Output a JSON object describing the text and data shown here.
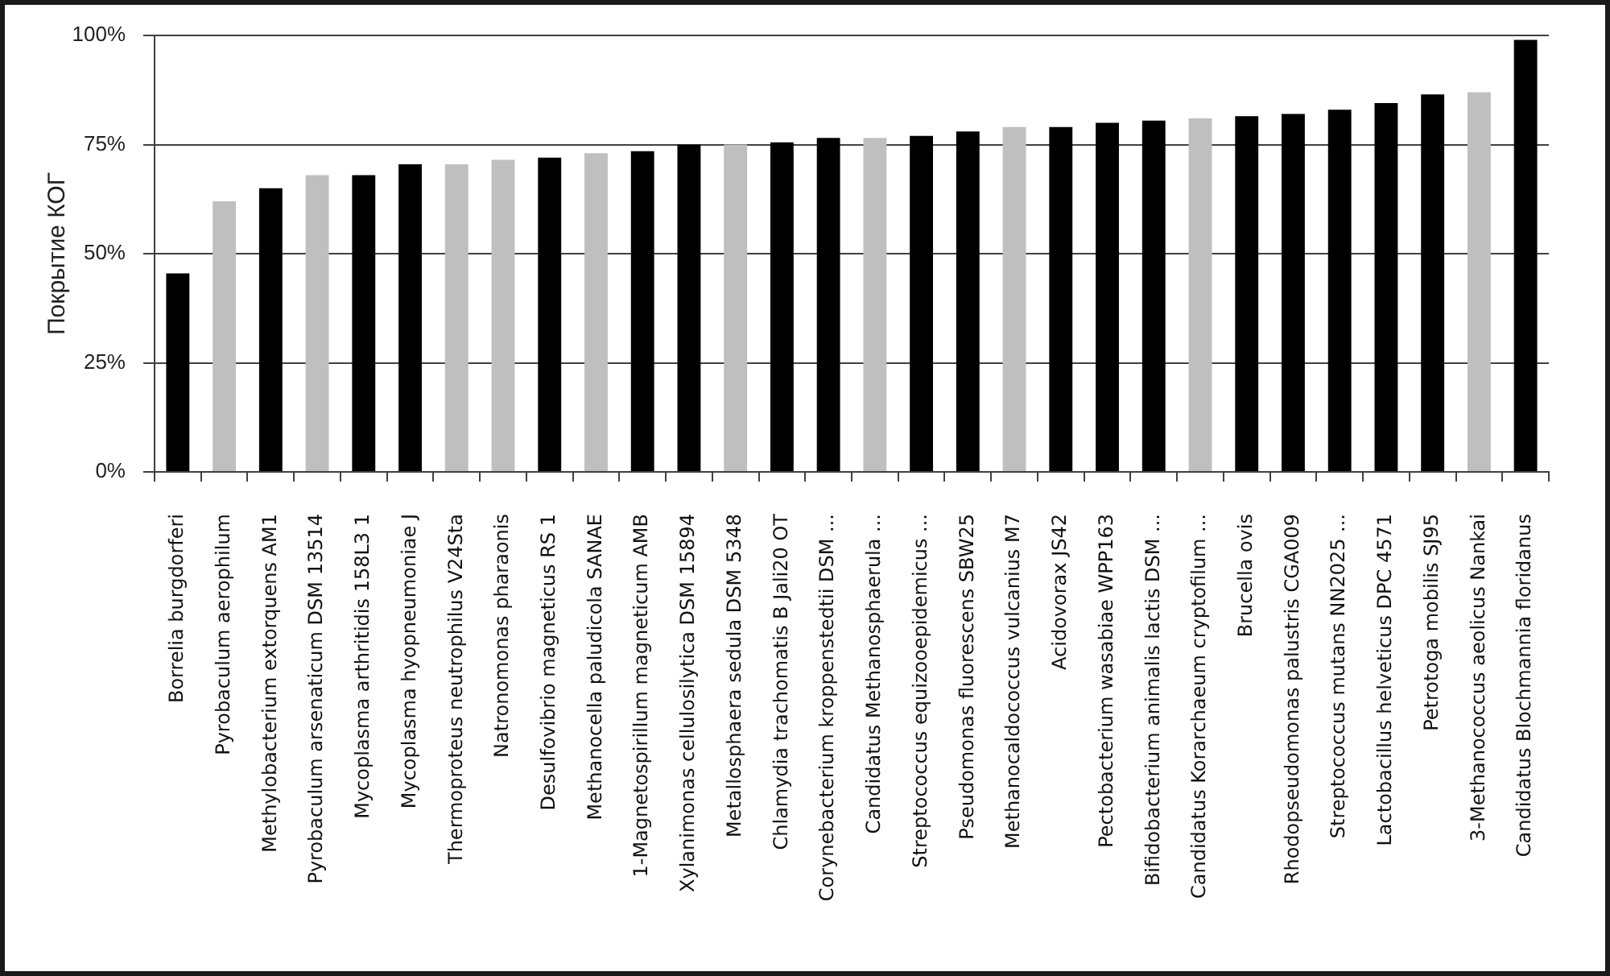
{
  "chart_data": {
    "type": "bar",
    "ylabel": "Покрытие КОГ",
    "categories": [
      "Borrelia burgdorferi",
      "Pyrobaculum aerophilum",
      "Methylobacterium extorquens AM1",
      "Pyrobaculum arsenaticum DSM 13514",
      "Mycoplasma arthritidis 158L3 1",
      "Mycoplasma hyopneumoniae J",
      "Thermoproteus neutrophilus V24Sta",
      "Natronomonas pharaonis",
      "Desulfovibrio magneticus RS 1",
      "Methanocella paludicola SANAE",
      "1-Magnetospirillum magneticum AMB",
      "Xylanimonas cellulosilytica DSM 15894",
      "Metallosphaera sedula DSM 5348",
      "Chlamydia trachomatis B Jali20 OT",
      "Corynebacterium kroppenstedtii DSM ...",
      "Candidatus Methanosphaerula ...",
      "Streptococcus equizooepidemicus ...",
      "Pseudomonas fluorescens SBW25",
      "Methanocaldococcus vulcanius M7",
      "Acidovorax JS42",
      "Pectobacterium wasabiae WPP163",
      "Bifidobacterium animalis lactis DSM ...",
      "Candidatus Korarchaeum cryptofilum ...",
      "Brucella ovis",
      "Rhodopseudomonas palustris CGA009",
      "Streptococcus mutans NN2025 ...",
      "Lactobacillus helveticus DPC 4571",
      "Petrotoga mobilis SJ95",
      "3-Methanococcus aeolicus Nankai",
      "Candidatus Blochmannia floridanus"
    ],
    "values": [
      45.5,
      62,
      65,
      68,
      68,
      70.5,
      70.5,
      71.5,
      72,
      73,
      73.5,
      75,
      75,
      75.5,
      76.5,
      76.5,
      77,
      78,
      79,
      79,
      80,
      80.5,
      81,
      81.5,
      82,
      83,
      84.5,
      86.5,
      87,
      99
    ],
    "colors": [
      "#000000",
      "#bfbfbf",
      "#000000",
      "#bfbfbf",
      "#000000",
      "#000000",
      "#bfbfbf",
      "#bfbfbf",
      "#000000",
      "#bfbfbf",
      "#000000",
      "#000000",
      "#bfbfbf",
      "#000000",
      "#000000",
      "#bfbfbf",
      "#000000",
      "#000000",
      "#bfbfbf",
      "#000000",
      "#000000",
      "#000000",
      "#bfbfbf",
      "#000000",
      "#000000",
      "#000000",
      "#000000",
      "#000000",
      "#bfbfbf",
      "#000000"
    ],
    "ylim": [
      0,
      100
    ],
    "yticks": [
      {
        "value": 0,
        "label": "0%"
      },
      {
        "value": 25,
        "label": "25%"
      },
      {
        "value": 50,
        "label": "50%"
      },
      {
        "value": 75,
        "label": "75%"
      },
      {
        "value": 100,
        "label": "100%"
      }
    ],
    "grid": "y"
  }
}
